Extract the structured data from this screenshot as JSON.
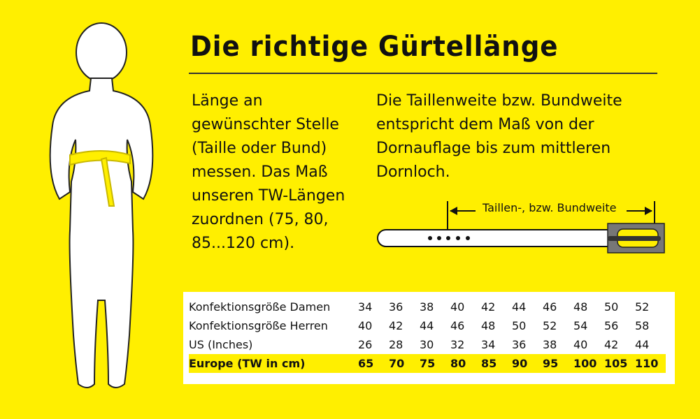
{
  "title": "Die richtige Gürtellänge",
  "left_text": "Länge an\ngewünschter Stelle\n(Taille oder Bund)\nmessen. Das Maß\nunseren TW-Längen\nzuordnen (75, 80,\n85...120 cm).",
  "right_text": "Die Taillenweite bzw. Bundweite\nentspricht dem Maß von der\nDornauflage bis zum mittleren\nDornloch.",
  "belt_label": "Taillen-, bzw. Bundweite",
  "colors": {
    "background": "#FFEF00",
    "table_bg": "#FFFFFF",
    "buckle": "#777777"
  },
  "size_table": {
    "rows": [
      {
        "label": "Konfektionsgröße Damen",
        "values": [
          "34",
          "36",
          "38",
          "40",
          "42",
          "44",
          "46",
          "48",
          "50",
          "52"
        ]
      },
      {
        "label": "Konfektionsgröße Herren",
        "values": [
          "40",
          "42",
          "44",
          "46",
          "48",
          "50",
          "52",
          "54",
          "56",
          "58"
        ]
      },
      {
        "label": "US (Inches)",
        "values": [
          "26",
          "28",
          "30",
          "32",
          "34",
          "36",
          "38",
          "40",
          "42",
          "44"
        ]
      },
      {
        "label": "Europe (TW in cm)",
        "values": [
          "65",
          "70",
          "75",
          "80",
          "85",
          "90",
          "95",
          "100",
          "105",
          "110"
        ],
        "highlighted": true
      }
    ]
  }
}
